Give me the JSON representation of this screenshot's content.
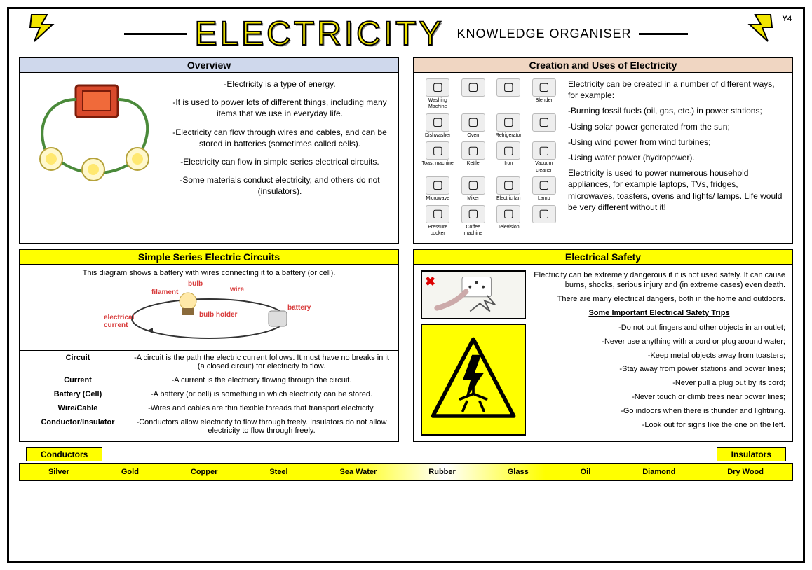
{
  "meta": {
    "year": "Y4"
  },
  "header": {
    "title": "ELECTRICITY",
    "subtitle": "KNOWLEDGE ORGANISER"
  },
  "overview": {
    "heading": "Overview",
    "points": [
      "-Electricity is a type of energy.",
      "-It is used to power lots of different things, including many items that we use in everyday life.",
      "-Electricity can flow through wires and cables, and can be stored in batteries (sometimes called cells).",
      "-Electricity can flow in simple series electrical circuits.",
      "-Some materials conduct electricity, and others do not (insulators)."
    ]
  },
  "creation": {
    "heading": "Creation and Uses of Electricity",
    "appliances": [
      "Washing Machine",
      "",
      "",
      "Blender",
      "Dishwasher",
      "Oven",
      "Refrigerator",
      "",
      "Toast machine",
      "Kettle",
      "Iron",
      "Vacuum cleaner",
      "Microwave",
      "Mixer",
      "Electric fan",
      "Lamp",
      "Pressure cooker",
      "Coffee machine",
      "Television",
      ""
    ],
    "intro": "Electricity can be created in a number of different ways, for example:",
    "ways": [
      "-Burning fossil fuels (oil, gas, etc.) in power stations;",
      "-Using solar power generated from the sun;",
      "-Using wind power from wind turbines;",
      "-Using water power (hydropower)."
    ],
    "uses": "Electricity is used to power numerous household appliances, for example laptops, TVs, fridges, microwaves, toasters, ovens and lights/ lamps. Life would be very different without it!"
  },
  "circuits": {
    "heading": "Simple Series Electric Circuits",
    "caption": "This diagram shows a battery with wires connecting it to a battery (or cell).",
    "labels": {
      "bulb": "bulb",
      "filament": "filament",
      "wire": "wire",
      "battery": "battery",
      "bulb_holder": "bulb holder",
      "electrical_current": "electrical current"
    },
    "definitions": [
      {
        "term": "Circuit",
        "desc": "-A circuit is the path the electric current follows. It must have no breaks in it (a closed circuit) for electricity to flow."
      },
      {
        "term": "Current",
        "desc": "-A current is the electricity flowing through the circuit."
      },
      {
        "term": "Battery (Cell)",
        "desc": "-A battery (or cell) is something in which electricity can be stored."
      },
      {
        "term": "Wire/Cable",
        "desc": "-Wires and cables are thin flexible threads that transport electricity."
      },
      {
        "term": "Conductor/Insulator",
        "desc": "-Conductors allow electricity to flow through freely. Insulators do not allow electricity to flow through freely."
      }
    ]
  },
  "safety": {
    "heading": "Electrical Safety",
    "intro1": "Electricity can be extremely dangerous if it is not used safely. It can cause burns, shocks, serious injury and (in extreme cases) even death.",
    "intro2": "There are many electrical dangers, both in the home and outdoors.",
    "tips_heading": "Some Important Electrical Safety Trips",
    "tips": [
      "-Do not put fingers and other objects in an outlet;",
      "-Never use anything with a cord or plug around water;",
      "-Keep metal objects away from toasters;",
      "-Stay away from power stations and power lines;",
      "-Never pull a plug out by its cord;",
      "-Never touch or climb trees near power lines;",
      "-Go indoors when there is thunder and lightning.",
      "-Look out for signs like the one on the left."
    ]
  },
  "materials": {
    "conductors_label": "Conductors",
    "insulators_label": "Insulators",
    "items": [
      "Silver",
      "Gold",
      "Copper",
      "Steel",
      "Sea Water",
      "Rubber",
      "Glass",
      "Oil",
      "Diamond",
      "Dry Wood"
    ]
  },
  "colors": {
    "yellow": "#ffff00",
    "head_blue": "#cfd8ec",
    "head_peach": "#f0d6c2",
    "label_red": "#d83a3a"
  }
}
